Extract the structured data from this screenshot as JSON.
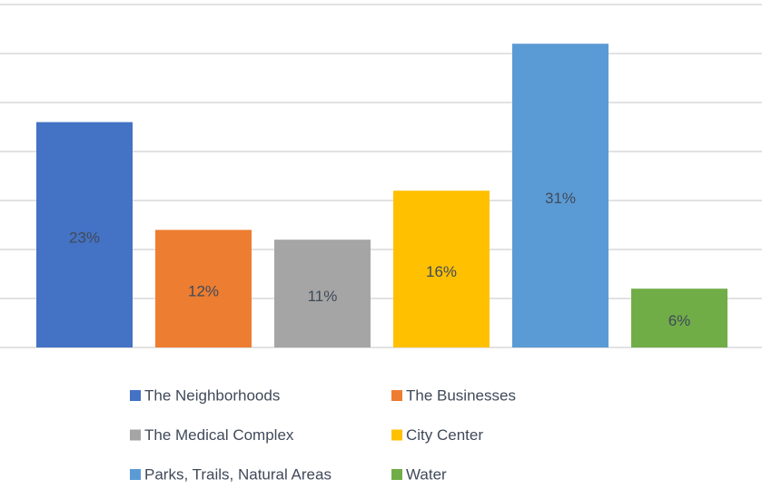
{
  "chart_data": {
    "type": "bar",
    "categories": [
      "The Neighborhoods",
      "The Businesses",
      "The Medical Complex",
      "City Center",
      "Parks, Trails, Natural Areas",
      "Water"
    ],
    "values": [
      23,
      12,
      11,
      16,
      31,
      6
    ],
    "value_labels": [
      "23%",
      "12%",
      "11%",
      "16%",
      "31%",
      "6%"
    ],
    "colors": [
      "#4472c4",
      "#ed7d31",
      "#a5a5a5",
      "#ffc000",
      "#5b9bd5",
      "#70ad47"
    ],
    "ylim": [
      0,
      35
    ],
    "yticks": [
      0,
      5,
      10,
      15,
      20,
      25,
      30,
      35
    ],
    "grid": true,
    "legend": "bottom"
  }
}
